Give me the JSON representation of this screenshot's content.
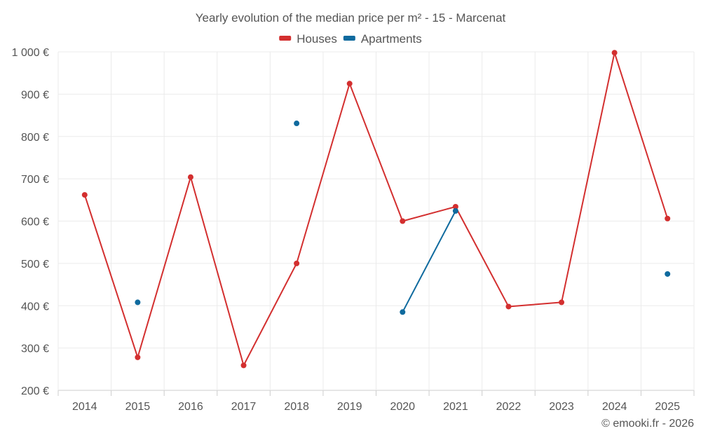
{
  "chart_data": {
    "type": "line",
    "title": "Yearly evolution of the median price per m² - 15 - Marcenat",
    "categories": [
      "2014",
      "2015",
      "2016",
      "2017",
      "2018",
      "2019",
      "2020",
      "2021",
      "2022",
      "2023",
      "2024",
      "2025"
    ],
    "series": [
      {
        "name": "Houses",
        "color": "#d32f2f",
        "values": [
          662,
          278,
          704,
          259,
          500,
          925,
          600,
          634,
          398,
          408,
          998,
          606
        ]
      },
      {
        "name": "Apartments",
        "color": "#0f6a9e",
        "values": [
          null,
          408,
          null,
          null,
          831,
          null,
          385,
          624,
          null,
          null,
          null,
          475
        ]
      }
    ],
    "ylim": [
      200,
      1000
    ],
    "yticks": [
      200,
      300,
      400,
      500,
      600,
      700,
      800,
      900,
      1000
    ],
    "ytick_labels": [
      "200 €",
      "300 €",
      "400 €",
      "500 €",
      "600 €",
      "700 €",
      "800 €",
      "900 €",
      "1 000 €"
    ],
    "legend_position": "top-center",
    "grid": true,
    "xlabel": "",
    "ylabel": ""
  },
  "credit": "© emooki.fr - 2026"
}
